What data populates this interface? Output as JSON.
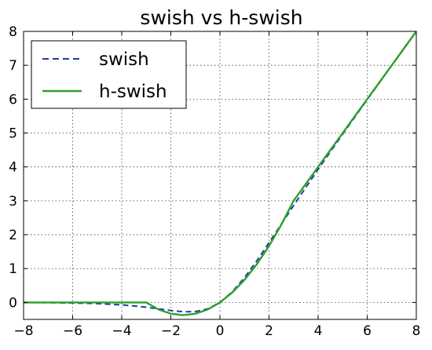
{
  "chart_data": {
    "type": "line",
    "title": "swish vs h-swish",
    "xlabel": "",
    "ylabel": "",
    "xlim": [
      -8,
      8
    ],
    "ylim": [
      -0.5,
      8
    ],
    "xticks": [
      -8,
      -6,
      -4,
      -2,
      0,
      2,
      4,
      6,
      8
    ],
    "yticks": [
      0,
      1,
      2,
      3,
      4,
      5,
      6,
      7,
      8
    ],
    "grid": true,
    "legend": "top-left",
    "x": [
      -8,
      -7,
      -6,
      -5,
      -4,
      -3.5,
      -3,
      -2.5,
      -2,
      -1.5,
      -1,
      -0.5,
      0,
      0.5,
      1,
      1.5,
      2,
      2.5,
      3,
      3.5,
      4,
      5,
      6,
      7,
      8
    ],
    "series": [
      {
        "name": "swish",
        "color": "#1f3d9e",
        "style": "dashed",
        "values": [
          -0.003,
          -0.006,
          -0.015,
          -0.033,
          -0.072,
          -0.102,
          -0.142,
          -0.189,
          -0.238,
          -0.274,
          -0.269,
          -0.189,
          0,
          0.311,
          0.731,
          1.226,
          1.762,
          2.311,
          2.858,
          3.394,
          3.928,
          4.967,
          5.985,
          6.994,
          7.997
        ]
      },
      {
        "name": "h-swish",
        "color": "#2ca02c",
        "style": "solid",
        "values": [
          0,
          0,
          0,
          0,
          0,
          0,
          0,
          -0.208,
          -0.333,
          -0.375,
          -0.333,
          -0.208,
          0,
          0.292,
          0.667,
          1.125,
          1.667,
          2.292,
          3,
          3.5,
          4,
          5,
          6,
          7,
          8
        ]
      }
    ]
  }
}
